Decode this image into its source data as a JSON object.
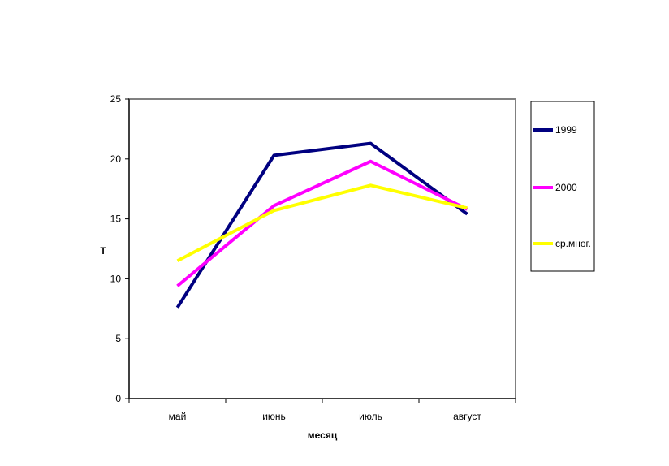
{
  "chart_data": {
    "type": "line",
    "categories": [
      "май",
      "июнь",
      "июль",
      "август"
    ],
    "series": [
      {
        "name": "1999",
        "values": [
          7.6,
          20.3,
          21.3,
          15.4
        ],
        "color": "#000080"
      },
      {
        "name": "2000",
        "values": [
          9.4,
          16.1,
          19.8,
          15.8
        ],
        "color": "#ff00ff"
      },
      {
        "name": "ср.мног.",
        "values": [
          11.5,
          15.7,
          17.8,
          15.9
        ],
        "color": "#ffff00"
      }
    ],
    "title": "",
    "xlabel": "месяц",
    "ylabel": "Т",
    "ylim": [
      0,
      25
    ],
    "yticks": [
      0,
      5,
      10,
      15,
      20,
      25
    ],
    "grid": false,
    "legend_position": "right"
  }
}
